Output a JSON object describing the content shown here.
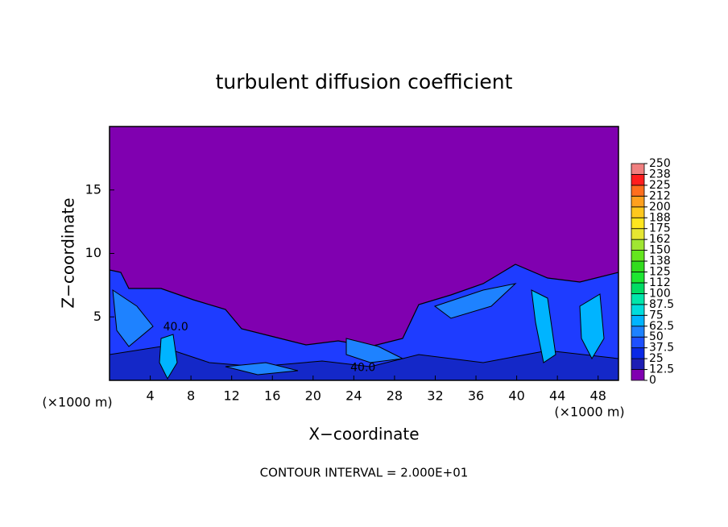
{
  "chart_data": {
    "type": "contour",
    "title": "turbulent diffusion coefficient",
    "xlabel": "X−coordinate",
    "ylabel": "Z−coordinate",
    "x_unit_left": "(×1000 m)",
    "x_unit_right": "(×1000 m)",
    "footer": "CONTOUR INTERVAL = 2.000E+01",
    "xlim": [
      0,
      50
    ],
    "xticks": [
      4,
      8,
      12,
      16,
      20,
      24,
      28,
      32,
      36,
      40,
      44,
      48
    ],
    "ylim": [
      0,
      20
    ],
    "yticks": [
      5,
      10,
      15
    ],
    "contour_labels": [
      {
        "value": 40,
        "label": "40.0",
        "x": 6.5,
        "y": 4.2
      },
      {
        "value": 40,
        "label": "40.0",
        "x": 24.9,
        "y": 1.0
      }
    ],
    "colorbar": {
      "levels": [
        0,
        12.5,
        25,
        37.5,
        50,
        62.5,
        75,
        87.5,
        100,
        {
          "value": 112.5,
          "label": "112"
        },
        125,
        {
          "value": 137.5,
          "label": "138"
        },
        150,
        {
          "value": 162.5,
          "label": "162"
        },
        175,
        {
          "value": 187.5,
          "label": "188"
        },
        200,
        {
          "value": 212.5,
          "label": "212"
        },
        225,
        {
          "value": 237.5,
          "label": "238"
        },
        250
      ],
      "colors": [
        "#8000b0",
        "#1e1eb4",
        "#0a28e6",
        "#1e50ff",
        "#1e82ff",
        "#00b4ff",
        "#00dcdc",
        "#00e6aa",
        "#00dc64",
        "#1ee632",
        "#32dc1e",
        "#64e61e",
        "#a0e632",
        "#e6e632",
        "#ffe61e",
        "#ffc81e",
        "#ffa01e",
        "#ff6e1e",
        "#ff1e1e",
        "#f08080"
      ]
    }
  }
}
